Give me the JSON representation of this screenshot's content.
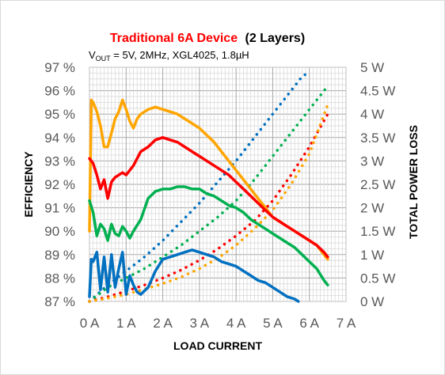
{
  "chart_data": {
    "type": "line",
    "title_part1": "Traditional 6A Device",
    "title_part2": "(2 Layers)",
    "subtitle": {
      "v": "V",
      "sub": "OUT",
      "rest": " = 5V, 2MHz, XGL4025, 1.8µH"
    },
    "xlabel": "LOAD CURRENT",
    "ylabel_left": "EFFICIENCY",
    "ylabel_right": "TOTAL POWER LOSS",
    "xlim": [
      0,
      7
    ],
    "ylim_left": [
      87,
      97
    ],
    "ylim_right": [
      0,
      5
    ],
    "x_ticks": [
      "0 A",
      "1 A",
      "2 A",
      "3 A",
      "4 A",
      "5 A",
      "6 A",
      "7 A"
    ],
    "y_left_ticks": [
      "87 %",
      "88 %",
      "89 %",
      "90 %",
      "91 %",
      "92 %",
      "93 %",
      "94 %",
      "95 %",
      "96 %",
      "97 %"
    ],
    "y_right_ticks": [
      "0 W",
      "0.5 W",
      "1 W",
      "1.5 W",
      "2 W",
      "2.5 W",
      "3 W",
      "3.5 W",
      "4 W",
      "4.5 W",
      "5 W"
    ],
    "colors": {
      "orange": "#ffa500",
      "red": "#ff0000",
      "green": "#00b050",
      "blue": "#0070c0",
      "grid": "#bfbfbf"
    },
    "efficiency_series": [
      {
        "color": "orange",
        "x": [
          0.0,
          0.05,
          0.1,
          0.2,
          0.3,
          0.4,
          0.5,
          0.6,
          0.7,
          0.8,
          0.9,
          1.0,
          1.1,
          1.2,
          1.3,
          1.4,
          1.6,
          1.8,
          2.0,
          2.2,
          2.4,
          2.6,
          2.8,
          3.0,
          3.2,
          3.4,
          3.6,
          3.8,
          4.0,
          4.2,
          4.4,
          4.6,
          4.8,
          5.0,
          5.2,
          5.4,
          5.6,
          5.8,
          6.0,
          6.2,
          6.4,
          6.5
        ],
        "y": [
          90.0,
          95.6,
          95.5,
          95.1,
          94.5,
          93.6,
          93.6,
          94.2,
          94.8,
          95.1,
          95.6,
          95.2,
          94.7,
          94.4,
          94.8,
          95.0,
          95.2,
          95.3,
          95.2,
          95.1,
          95.0,
          94.8,
          94.6,
          94.4,
          94.1,
          93.8,
          93.4,
          93.0,
          92.6,
          92.2,
          91.8,
          91.4,
          91.0,
          90.6,
          90.4,
          90.2,
          90.0,
          89.8,
          89.6,
          89.4,
          89.0,
          88.8
        ]
      },
      {
        "color": "red",
        "x": [
          0.0,
          0.1,
          0.2,
          0.3,
          0.4,
          0.5,
          0.6,
          0.7,
          0.8,
          0.9,
          1.0,
          1.1,
          1.2,
          1.4,
          1.6,
          1.8,
          2.0,
          2.2,
          2.4,
          2.6,
          2.8,
          3.0,
          3.2,
          3.4,
          3.6,
          3.8,
          4.0,
          4.2,
          4.4,
          4.6,
          4.8,
          5.0,
          5.2,
          5.4,
          5.6,
          5.8,
          6.0,
          6.2,
          6.4,
          6.5
        ],
        "y": [
          93.1,
          92.9,
          92.4,
          91.8,
          92.2,
          91.4,
          92.1,
          92.3,
          92.4,
          92.5,
          92.4,
          92.6,
          92.8,
          93.4,
          93.6,
          93.9,
          94.0,
          93.9,
          93.8,
          93.6,
          93.4,
          93.2,
          93.0,
          92.8,
          92.6,
          92.4,
          92.1,
          91.8,
          91.5,
          91.2,
          90.9,
          90.6,
          90.4,
          90.2,
          90.0,
          89.8,
          89.6,
          89.4,
          89.1,
          88.9
        ]
      },
      {
        "color": "green",
        "x": [
          0.0,
          0.1,
          0.2,
          0.3,
          0.4,
          0.5,
          0.6,
          0.7,
          0.8,
          0.9,
          1.0,
          1.1,
          1.2,
          1.4,
          1.6,
          1.8,
          2.0,
          2.2,
          2.4,
          2.6,
          2.8,
          3.0,
          3.2,
          3.4,
          3.6,
          3.8,
          4.0,
          4.2,
          4.4,
          4.6,
          4.8,
          5.0,
          5.2,
          5.4,
          5.6,
          5.8,
          6.0,
          6.2,
          6.4,
          6.5
        ],
        "y": [
          91.3,
          90.8,
          89.8,
          90.3,
          90.1,
          89.6,
          90.3,
          89.9,
          89.8,
          90.2,
          90.0,
          89.7,
          90.0,
          90.5,
          91.4,
          91.7,
          91.8,
          91.8,
          91.9,
          91.9,
          91.8,
          91.8,
          91.6,
          91.5,
          91.3,
          91.1,
          91.0,
          90.8,
          90.5,
          90.3,
          90.1,
          89.9,
          89.7,
          89.5,
          89.3,
          89.0,
          88.7,
          88.4,
          87.9,
          87.7
        ]
      },
      {
        "color": "blue",
        "x": [
          0.0,
          0.05,
          0.1,
          0.2,
          0.3,
          0.4,
          0.5,
          0.6,
          0.7,
          0.8,
          0.9,
          1.0,
          1.1,
          1.2,
          1.3,
          1.4,
          1.6,
          1.8,
          2.0,
          2.2,
          2.4,
          2.6,
          2.8,
          3.0,
          3.2,
          3.4,
          3.6,
          3.8,
          4.0,
          4.2,
          4.4,
          4.6,
          4.8,
          5.0,
          5.2,
          5.4,
          5.6,
          5.7
        ],
        "y": [
          87.2,
          88.8,
          88.7,
          89.1,
          87.5,
          88.9,
          87.4,
          89.0,
          87.6,
          88.4,
          89.1,
          87.3,
          88.1,
          87.7,
          87.4,
          87.3,
          87.6,
          88.3,
          88.8,
          88.9,
          89.0,
          89.1,
          89.2,
          89.1,
          89.0,
          88.9,
          88.7,
          88.6,
          88.5,
          88.3,
          88.1,
          87.9,
          87.8,
          87.6,
          87.4,
          87.2,
          87.1,
          87.0
        ]
      }
    ],
    "loss_series": [
      {
        "color": "blue",
        "x": [
          0.0,
          0.5,
          1.0,
          1.5,
          2.0,
          2.5,
          3.0,
          3.5,
          4.0,
          4.5,
          5.0,
          5.5,
          5.8,
          6.0
        ],
        "y": [
          0.0,
          0.35,
          0.65,
          0.95,
          1.3,
          1.7,
          2.1,
          2.55,
          3.0,
          3.5,
          4.0,
          4.5,
          4.8,
          4.9
        ]
      },
      {
        "color": "green",
        "x": [
          0.0,
          0.5,
          1.0,
          1.5,
          2.0,
          2.5,
          3.0,
          3.5,
          4.0,
          4.5,
          5.0,
          5.5,
          6.0,
          6.5
        ],
        "y": [
          0.0,
          0.3,
          0.5,
          0.7,
          0.95,
          1.2,
          1.5,
          1.8,
          2.15,
          2.6,
          3.1,
          3.6,
          4.1,
          4.6
        ]
      },
      {
        "color": "red",
        "x": [
          0.0,
          0.5,
          1.0,
          1.5,
          2.0,
          2.5,
          3.0,
          3.5,
          4.0,
          4.5,
          5.0,
          5.5,
          6.0,
          6.5
        ],
        "y": [
          0.0,
          0.1,
          0.22,
          0.35,
          0.5,
          0.67,
          0.88,
          1.12,
          1.4,
          1.72,
          2.15,
          2.7,
          3.3,
          4.0
        ]
      },
      {
        "color": "orange",
        "x": [
          0.0,
          0.5,
          1.0,
          1.5,
          2.0,
          2.5,
          3.0,
          3.5,
          4.0,
          4.5,
          5.0,
          5.5,
          6.0,
          6.5
        ],
        "y": [
          0.0,
          0.07,
          0.15,
          0.26,
          0.38,
          0.52,
          0.7,
          0.92,
          1.2,
          1.55,
          1.95,
          2.5,
          3.15,
          4.2
        ]
      }
    ]
  }
}
